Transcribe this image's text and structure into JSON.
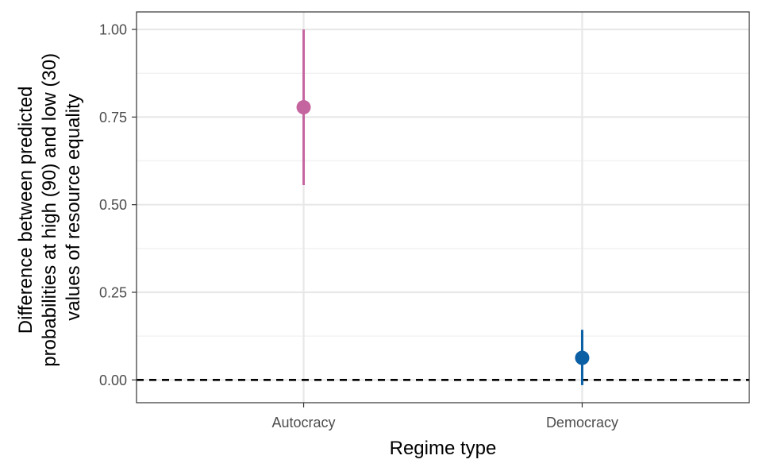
{
  "chart_data": {
    "type": "scatter",
    "title": "",
    "xlabel": "Regime type",
    "ylabel_lines": [
      "Difference between predicted",
      "probabilities at high (90) and low (30)",
      "values of resource equality"
    ],
    "categories": [
      "Autocracy",
      "Democracy"
    ],
    "points": [
      {
        "category": "Autocracy",
        "estimate": 0.778,
        "lower": 0.556,
        "upper": 1.0,
        "color": "#c5659f"
      },
      {
        "category": "Democracy",
        "estimate": 0.063,
        "lower": -0.015,
        "upper": 0.143,
        "color": "#0b5fa5"
      }
    ],
    "ylim": [
      -0.065,
      1.05
    ],
    "yticks": [
      0.0,
      0.25,
      0.5,
      0.75,
      1.0
    ],
    "ytick_labels": [
      "0.00",
      "0.25",
      "0.50",
      "0.75",
      "1.00"
    ],
    "reference_line": {
      "y": 0,
      "style": "dashed"
    },
    "grid": true,
    "legend": "none"
  }
}
